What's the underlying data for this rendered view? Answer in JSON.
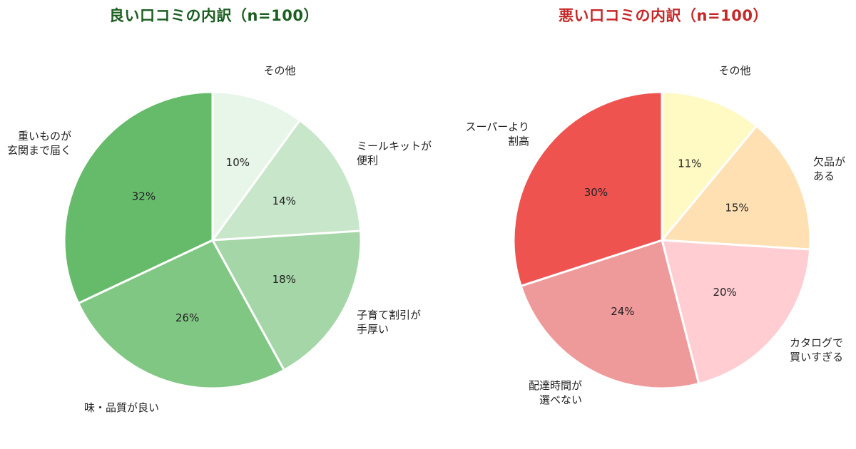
{
  "chart_data": [
    {
      "type": "pie",
      "title": "良い口コミの内訳（n=100）",
      "title_color": "#1b5e20",
      "slices": [
        {
          "label_lines": [
            "その他"
          ],
          "value": 10,
          "value_label": "10%",
          "color": "#e8f5e9"
        },
        {
          "label_lines": [
            "ミールキットが",
            "便利"
          ],
          "value": 14,
          "value_label": "14%",
          "color": "#c8e6c9"
        },
        {
          "label_lines": [
            "子育て割引が",
            "手厚い"
          ],
          "value": 18,
          "value_label": "18%",
          "color": "#a5d6a7"
        },
        {
          "label_lines": [
            "味・品質が良い"
          ],
          "value": 26,
          "value_label": "26%",
          "color": "#81c784"
        },
        {
          "label_lines": [
            "重いものが",
            "玄関まで届く"
          ],
          "value": 32,
          "value_label": "32%",
          "color": "#66bb6a"
        }
      ],
      "start_angle": "12 o'clock",
      "direction": "clockwise",
      "legend": "none"
    },
    {
      "type": "pie",
      "title": "悪い口コミの内訳（n=100）",
      "title_color": "#c62828",
      "slices": [
        {
          "label_lines": [
            "その他"
          ],
          "value": 11,
          "value_label": "11%",
          "color": "#fff9c4"
        },
        {
          "label_lines": [
            "欠品が",
            "ある"
          ],
          "value": 15,
          "value_label": "15%",
          "color": "#ffe0b2"
        },
        {
          "label_lines": [
            "カタログで",
            "買いすぎる"
          ],
          "value": 20,
          "value_label": "20%",
          "color": "#ffcdd2"
        },
        {
          "label_lines": [
            "配達時間が",
            "選べない"
          ],
          "value": 24,
          "value_label": "24%",
          "color": "#ef9a9a"
        },
        {
          "label_lines": [
            "スーパーより",
            "割高"
          ],
          "value": 30,
          "value_label": "30%",
          "color": "#ef5350"
        }
      ],
      "start_angle": "12 o'clock",
      "direction": "clockwise",
      "legend": "none"
    }
  ]
}
